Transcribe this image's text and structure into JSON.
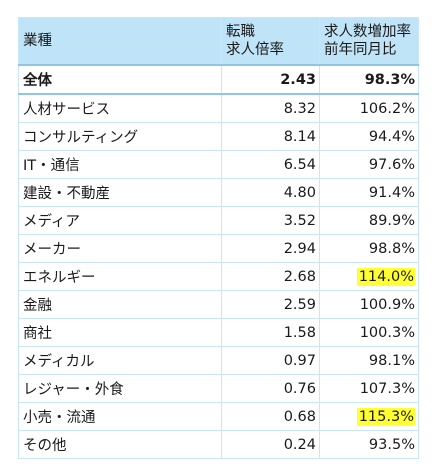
{
  "table": {
    "headers": {
      "industry": "業種",
      "ratio_line1": "転職",
      "ratio_line2": "求人倍率",
      "growth_line1": "求人数増加率",
      "growth_line2": "前年同月比"
    },
    "total": {
      "industry": "全体",
      "ratio": "2.43",
      "growth": "98.3%"
    },
    "rows": [
      {
        "industry": "人材サービス",
        "ratio": "8.32",
        "growth": "106.2%"
      },
      {
        "industry": "コンサルティング",
        "ratio": "8.14",
        "growth": "94.4%"
      },
      {
        "industry": "IT・通信",
        "ratio": "6.54",
        "growth": "97.6%"
      },
      {
        "industry": "建設・不動産",
        "ratio": "4.80",
        "growth": "91.4%"
      },
      {
        "industry": "メディア",
        "ratio": "3.52",
        "growth": "89.9%"
      },
      {
        "industry": "メーカー",
        "ratio": "2.94",
        "growth": "98.8%"
      },
      {
        "industry": "エネルギー",
        "ratio": "2.68",
        "growth": "114.0%"
      },
      {
        "industry": "金融",
        "ratio": "2.59",
        "growth": "100.9%"
      },
      {
        "industry": "商社",
        "ratio": "1.58",
        "growth": "100.3%"
      },
      {
        "industry": "メディカル",
        "ratio": "0.97",
        "growth": "98.1%"
      },
      {
        "industry": "レジャー・外食",
        "ratio": "0.76",
        "growth": "107.3%"
      },
      {
        "industry": "小売・流通",
        "ratio": "0.68",
        "growth": "115.3%"
      },
      {
        "industry": "その他",
        "ratio": "0.24",
        "growth": "93.5%"
      }
    ],
    "highlight_color": "#ffff33"
  }
}
